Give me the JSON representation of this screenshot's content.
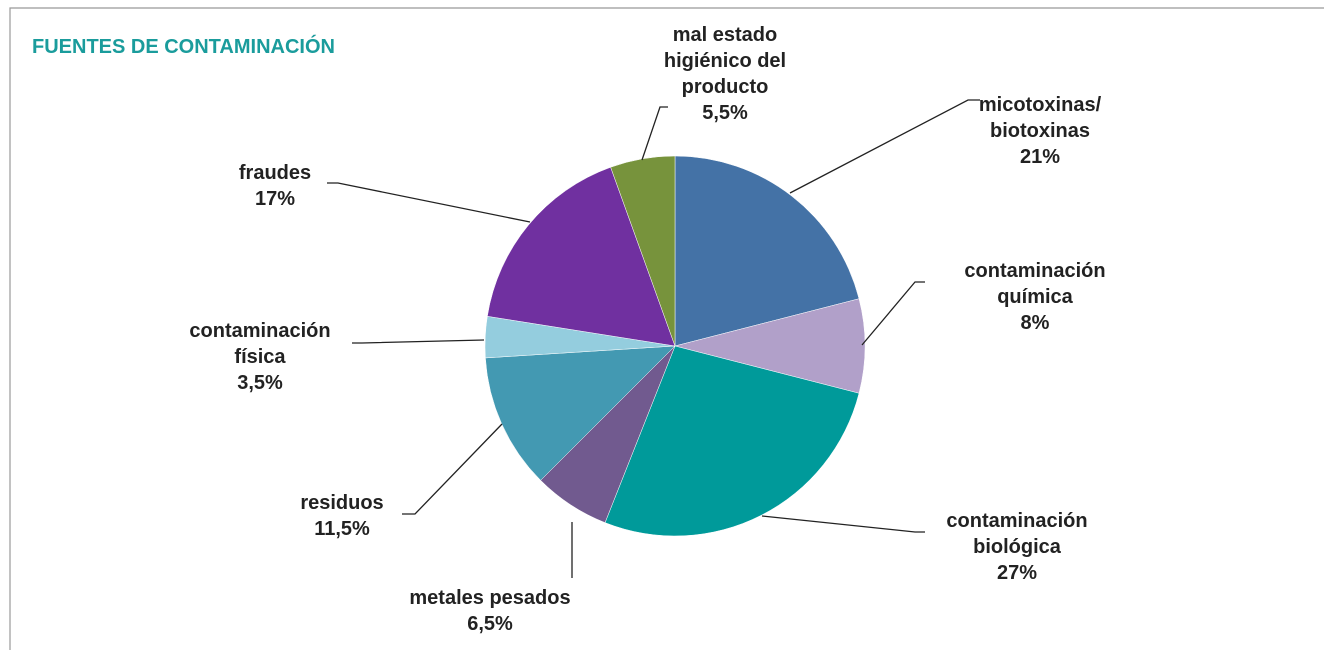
{
  "chart_data": {
    "type": "pie",
    "title": "FUENTES DE CONTAMINACIÓN",
    "categories": [
      "micotoxinas/\nbiotoxinas",
      "contaminación\nquímica",
      "contaminación\nbiológica",
      "metales pesados",
      "residuos",
      "contaminación\nfísica",
      "fraudes",
      "mal estado\nhigiénico del\nproducto"
    ],
    "values": [
      21,
      8,
      27,
      6.5,
      11.5,
      3.5,
      17,
      5.5
    ],
    "value_labels": [
      "21%",
      "8%",
      "27%",
      "6,5%",
      "11,5%",
      "3,5%",
      "17%",
      "5,5%"
    ],
    "colors": [
      "#4472a6",
      "#b1a0c9",
      "#009a9a",
      "#715a8f",
      "#4399b2",
      "#94cdde",
      "#7030a0",
      "#77933c"
    ]
  }
}
